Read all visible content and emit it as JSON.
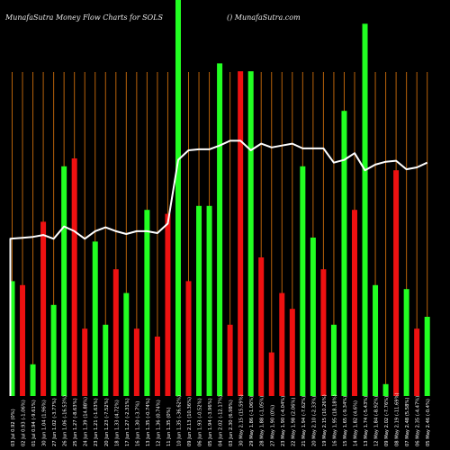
{
  "header": {
    "title": "MunafaSutra  Money Flow  Charts for SOLS",
    "site": "() MunafaSutra.com"
  },
  "colors": {
    "background": "#000000",
    "grid": "#b8620a",
    "up": "#22ff22",
    "down": "#ee1111",
    "line": "#ffffff",
    "label": "#ffffff"
  },
  "chart_data": {
    "type": "bar",
    "grid": true,
    "bar_series": "Money Flow",
    "line_series": "Price",
    "bars": [
      {
        "label": "03 Jul 0.92 (0%)",
        "direction": "up",
        "value": 29
      },
      {
        "label": "02 Jul 0.93 (-1.06%)",
        "direction": "down",
        "value": 28
      },
      {
        "label": "01 Jul 0.94 (-9.61%)",
        "direction": "up",
        "value": 8
      },
      {
        "label": "30 Jun 1.04 (1.96%)",
        "direction": "down",
        "value": 44
      },
      {
        "label": "27 Jun 1.02 (-3.77%)",
        "direction": "up",
        "value": 23
      },
      {
        "label": "26 Jun 1.06 (-16.53%)",
        "direction": "up",
        "value": 58
      },
      {
        "label": "25 Jun 1.27 (-8.63%)",
        "direction": "down",
        "value": 60
      },
      {
        "label": "24 Jun 1.39 (14.88%)",
        "direction": "down",
        "value": 17
      },
      {
        "label": "23 Jun 1.21 (-1.63%)",
        "direction": "up",
        "value": 39
      },
      {
        "label": "20 Jun 1.23 (-7.52%)",
        "direction": "up",
        "value": 18
      },
      {
        "label": "18 Jun 1.33 (4.72%)",
        "direction": "down",
        "value": 32
      },
      {
        "label": "17 Jun 1.27 (-2.31%)",
        "direction": "up",
        "value": 26
      },
      {
        "label": "16 Jun 1.30 (-3.7%)",
        "direction": "down",
        "value": 17
      },
      {
        "label": "13 Jun 1.35 (-0.74%)",
        "direction": "up",
        "value": 47
      },
      {
        "label": "12 Jun 1.36 (0.74%)",
        "direction": "down",
        "value": 15
      },
      {
        "label": "11 Jun 1.35 (0%)",
        "direction": "down",
        "value": 46
      },
      {
        "label": "10 Jun 1.35 (-36.62%)",
        "direction": "up",
        "value": 100
      },
      {
        "label": "09 Jun 2.13 (10.36%)",
        "direction": "down",
        "value": 29
      },
      {
        "label": "06 Jun 1.93 (-0.52%)",
        "direction": "up",
        "value": 48
      },
      {
        "label": "05 Jun 1.94 (-3.96%)",
        "direction": "up",
        "value": 48
      },
      {
        "label": "04 Jun 2.02 (-12.17%)",
        "direction": "up",
        "value": 84
      },
      {
        "label": "03 Jun 2.30 (6.98%)",
        "direction": "down",
        "value": 18
      },
      {
        "label": "30 May 2.15 (15.59%)",
        "direction": "down",
        "value": 82
      },
      {
        "label": "29 May 1.86 (-1.06%)",
        "direction": "up",
        "value": 82
      },
      {
        "label": "28 May 1.88 (-1.05%)",
        "direction": "down",
        "value": 35
      },
      {
        "label": "27 May 1.90 (0%)",
        "direction": "down",
        "value": 11
      },
      {
        "label": "23 May 1.90 (-4.04%)",
        "direction": "down",
        "value": 26
      },
      {
        "label": "22 May 1.98 (2.06%)",
        "direction": "down",
        "value": 22
      },
      {
        "label": "21 May 1.94 (-7.62%)",
        "direction": "up",
        "value": 58
      },
      {
        "label": "20 May 2.10 (-2.33%)",
        "direction": "up",
        "value": 40
      },
      {
        "label": "19 May 2.15 (10.26%)",
        "direction": "down",
        "value": 32
      },
      {
        "label": "16 May 1.95 (18.18%)",
        "direction": "up",
        "value": 18
      },
      {
        "label": "15 May 1.65 (-9.34%)",
        "direction": "up",
        "value": 72
      },
      {
        "label": "14 May 1.82 (4.6%)",
        "direction": "down",
        "value": 47
      },
      {
        "label": "13 May 1.74 (-5.43%)",
        "direction": "up",
        "value": 94
      },
      {
        "label": "12 May 1.84 (-8.92%)",
        "direction": "up",
        "value": 28
      },
      {
        "label": "09 May 2.02 (-7.76%)",
        "direction": "up",
        "value": 3
      },
      {
        "label": "08 May 2.19 (-11.69%)",
        "direction": "down",
        "value": 57
      },
      {
        "label": "07 May 2.48 (5.58%)",
        "direction": "up",
        "value": 27
      },
      {
        "label": "06 May 2.35 (-4.47%)",
        "direction": "down",
        "value": 17
      },
      {
        "label": "05 May 2.46 (-0.4%)",
        "direction": "up",
        "value": 20
      }
    ],
    "price_line": [
      0.92,
      0.93,
      0.94,
      0.96,
      0.92,
      1.05,
      1.0,
      0.92,
      1.0,
      1.04,
      1.0,
      0.97,
      1.0,
      1.0,
      0.98,
      1.08,
      1.75,
      1.85,
      1.86,
      1.86,
      1.9,
      1.95,
      1.95,
      1.85,
      1.92,
      1.88,
      1.9,
      1.92,
      1.87,
      1.87,
      1.87,
      1.72,
      1.75,
      1.82,
      1.64,
      1.7,
      1.73,
      1.74,
      1.65,
      1.67,
      1.72
    ]
  }
}
